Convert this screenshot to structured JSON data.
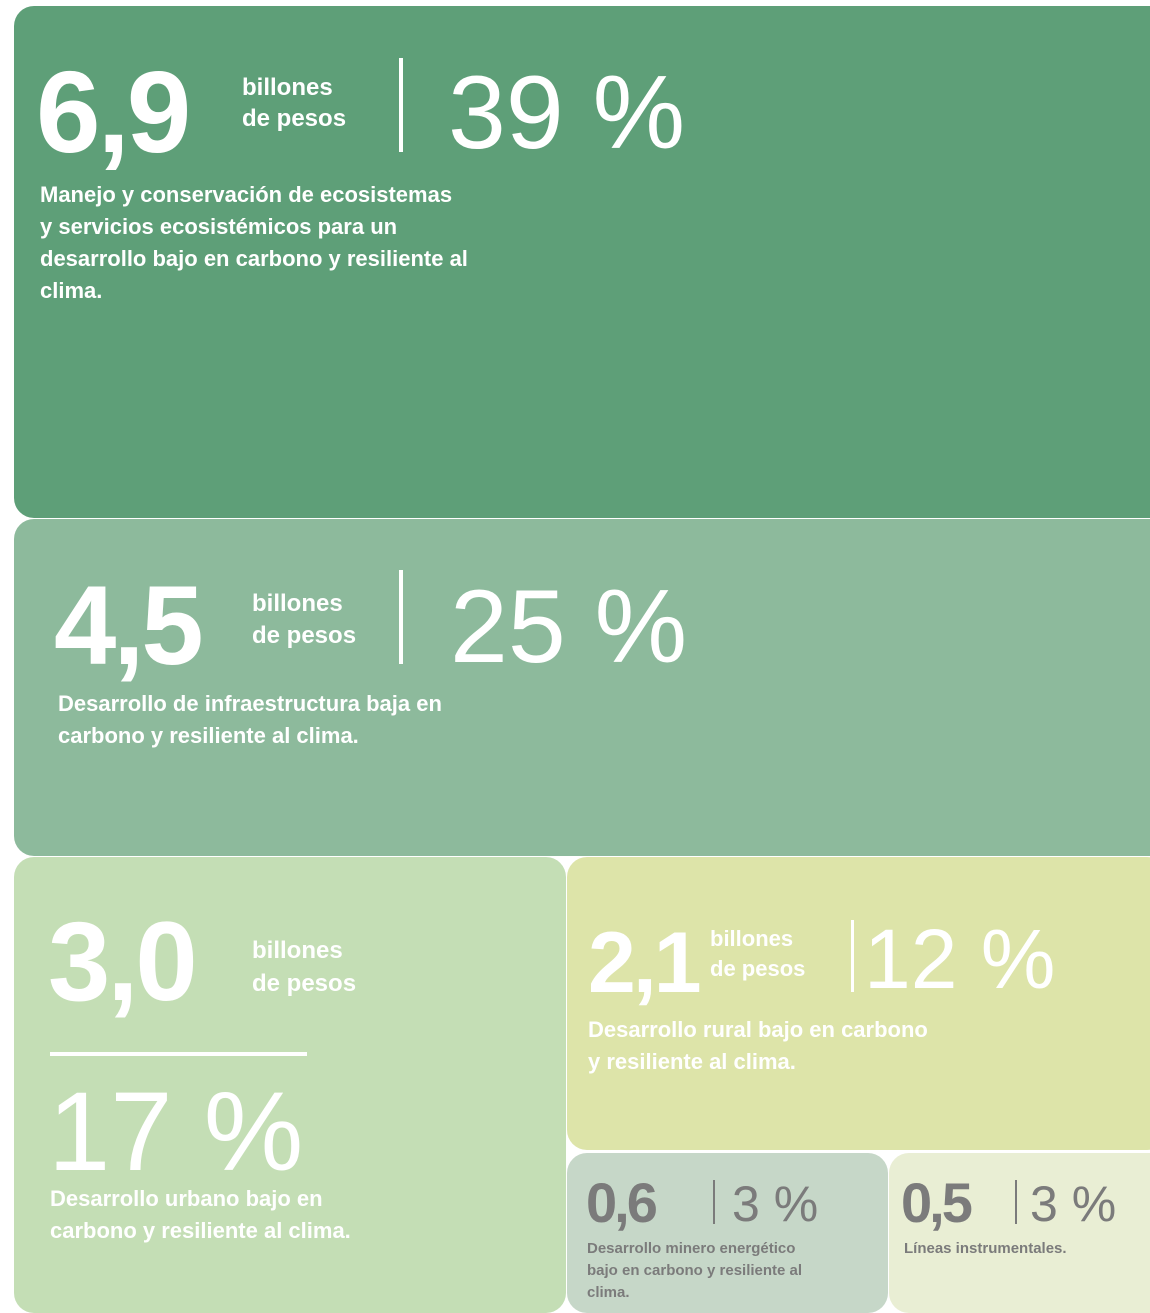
{
  "tiles": [
    {
      "amount": "6,9",
      "unit": [
        "billones",
        "de pesos"
      ],
      "percent": "39 %",
      "description": [
        "Manejo y conservación de ecosistemas",
        "y servicios ecosistémicos para un",
        "desarrollo bajo en carbono y resiliente al",
        "clima."
      ]
    },
    {
      "amount": "4,5",
      "unit": [
        "billones",
        "de pesos"
      ],
      "percent": "25 %",
      "description": [
        "Desarrollo de infraestructura baja en",
        "carbono y resiliente al clima."
      ]
    },
    {
      "amount": "3,0",
      "unit": [
        "billones",
        "de pesos"
      ],
      "percent": "17 %",
      "description": [
        "Desarrollo urbano bajo en",
        "carbono y resiliente al clima."
      ]
    },
    {
      "amount": "2,1",
      "unit": [
        "billones",
        "de pesos"
      ],
      "percent": "12 %",
      "description": [
        "Desarrollo rural bajo en carbono",
        "y resiliente al clima."
      ]
    },
    {
      "amount": "0,6",
      "percent": "3 %",
      "description": [
        "Desarrollo minero energético",
        "bajo en carbono y resiliente al",
        "clima."
      ]
    },
    {
      "amount": "0,5",
      "percent": "3 %",
      "description": [
        "Líneas instrumentales."
      ]
    }
  ]
}
